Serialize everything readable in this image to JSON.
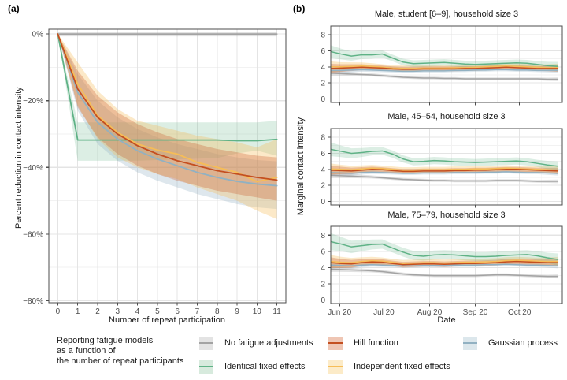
{
  "figure": {
    "panel_a_label": "(a)",
    "panel_b_label": "(b)"
  },
  "colors": {
    "no_fatigue": {
      "line": "#a3a3a3",
      "fill": "rgba(160,160,160,0.30)",
      "key_bg": "#e3e3e3"
    },
    "identical": {
      "line": "#5fb286",
      "fill": "rgba(95,178,134,0.22)",
      "key_bg": "#d7eadd"
    },
    "hill": {
      "line": "#c44f20",
      "fill": "rgba(196,79,32,0.28)",
      "key_bg": "#efc6b4"
    },
    "independent": {
      "line": "#f6bd57",
      "fill": "rgba(246,189,87,0.33)",
      "key_bg": "#fcebc8"
    },
    "gaussian": {
      "line": "#91b1c2",
      "fill": "rgba(145,177,194,0.30)",
      "key_bg": "#dce7ec"
    }
  },
  "legend": {
    "title_lines": [
      "Reporting fatigue models",
      "as a function of",
      "the number of repeat participants"
    ],
    "entries": [
      {
        "label": "No fatigue adjustments",
        "color": "no_fatigue"
      },
      {
        "label": "Identical fixed effects",
        "color": "identical"
      },
      {
        "label": "Hill function",
        "color": "hill"
      },
      {
        "label": "Independent fixed effects",
        "color": "independent"
      },
      {
        "label": "Gaussian process",
        "color": "gaussian"
      }
    ]
  },
  "panel_b": {
    "ylabel": "Marginal contact intensity",
    "xlabel": "Date"
  },
  "chart_data": [
    {
      "id": "panel-a",
      "type": "line",
      "xlabel": "Number of repeat participation",
      "ylabel": "Percent reduction in contact intensity",
      "xlim": [
        -0.45,
        11.45
      ],
      "ylim": [
        -80.6,
        1.45
      ],
      "xticks": [
        {
          "v": 0,
          "label": "0"
        },
        {
          "v": 1,
          "label": "1"
        },
        {
          "v": 2,
          "label": "2"
        },
        {
          "v": 3,
          "label": "3"
        },
        {
          "v": 4,
          "label": "4"
        },
        {
          "v": 5,
          "label": "5"
        },
        {
          "v": 6,
          "label": "6"
        },
        {
          "v": 7,
          "label": "7"
        },
        {
          "v": 8,
          "label": "8"
        },
        {
          "v": 9,
          "label": "9"
        },
        {
          "v": 10,
          "label": "10"
        },
        {
          "v": 11,
          "label": "11"
        }
      ],
      "yticks": [
        {
          "v": 0,
          "label": "0%"
        },
        {
          "v": -20,
          "label": "−20%"
        },
        {
          "v": -40,
          "label": "−40%"
        },
        {
          "v": -60,
          "label": "−60%"
        },
        {
          "v": -80,
          "label": "−80%"
        }
      ],
      "yminor": [
        -10,
        -30,
        -50,
        -70
      ],
      "xminor": [],
      "x": [
        0,
        1,
        2,
        3,
        4,
        5,
        6,
        7,
        8,
        9,
        10,
        11
      ],
      "series": [
        {
          "name": "No fatigue adjustments",
          "color": "no_fatigue",
          "values": [
            0,
            0,
            0,
            0,
            0,
            0,
            0,
            0,
            0,
            0,
            0,
            0
          ],
          "upper": [
            0.7,
            0.7,
            0.7,
            0.7,
            0.7,
            0.7,
            0.7,
            0.7,
            0.7,
            0.7,
            0.7,
            0.7
          ],
          "lower": [
            -0.7,
            -0.7,
            -0.7,
            -0.7,
            -0.7,
            -0.7,
            -0.7,
            -0.7,
            -0.7,
            -0.7,
            -0.7,
            -0.7
          ]
        },
        {
          "name": "Identical fixed effects",
          "color": "identical",
          "values": [
            0,
            -31.8,
            -31.8,
            -31.8,
            -31.8,
            -31.8,
            -31.8,
            -31.8,
            -31.8,
            -32,
            -32,
            -31.6
          ],
          "upper": [
            0,
            -26.5,
            -26.5,
            -26.5,
            -26.5,
            -26.5,
            -26.5,
            -26.5,
            -26.5,
            -26.5,
            -26.5,
            -26
          ],
          "lower": [
            0,
            -38,
            -38,
            -38,
            -38,
            -37.8,
            -37.6,
            -37.4,
            -37.2,
            -35.8,
            -35,
            -36.5
          ]
        },
        {
          "name": "Gaussian process",
          "color": "gaussian",
          "values": [
            0,
            -17.5,
            -26.5,
            -31.5,
            -35,
            -37.5,
            -39.5,
            -41.5,
            -43,
            -44.2,
            -45,
            -45.5
          ],
          "upper": [
            0,
            -12,
            -20,
            -25,
            -28.5,
            -31,
            -33,
            -34.5,
            -36,
            -37,
            -37.8,
            -38.2
          ],
          "lower": [
            0,
            -23,
            -33,
            -38,
            -41.5,
            -44,
            -46,
            -48,
            -49.5,
            -51,
            -52,
            -52.5
          ]
        },
        {
          "name": "Independent fixed effects",
          "color": "independent",
          "values": [
            0,
            -15,
            -24.5,
            -29.5,
            -33,
            -34.8,
            -36,
            -38.5,
            -40,
            -41.5,
            -44.3,
            -43
          ],
          "upper": [
            0,
            -8.5,
            -17,
            -22.5,
            -26,
            -27.5,
            -29,
            -30.5,
            -31.5,
            -32.5,
            -34,
            -31.5
          ],
          "lower": [
            0,
            -21.5,
            -31.5,
            -37,
            -40,
            -42,
            -43.5,
            -46,
            -48,
            -50,
            -53,
            -55.5
          ]
        },
        {
          "name": "Hill function",
          "color": "hill",
          "values": [
            0,
            -16.5,
            -25,
            -30,
            -33.5,
            -36,
            -38,
            -39.5,
            -41,
            -42,
            -43,
            -43.8
          ],
          "upper": [
            0,
            -11,
            -18.5,
            -23.5,
            -27,
            -29.5,
            -31.5,
            -33,
            -34.5,
            -35.5,
            -36.5,
            -37
          ],
          "lower": [
            0,
            -22,
            -31,
            -36,
            -39.5,
            -42,
            -44,
            -45.5,
            -47,
            -48,
            -49,
            -50
          ]
        }
      ]
    },
    {
      "id": "panel-b-1",
      "type": "line",
      "title": "Male, student [6–9], household size 3",
      "xlim": [
        0,
        157
      ],
      "ylim": [
        -0.45,
        9.1
      ],
      "xticks": [
        {
          "v": 6,
          "label": "Jun 20"
        },
        {
          "v": 36,
          "label": "Jul 20"
        },
        {
          "v": 67,
          "label": "Aug 20"
        },
        {
          "v": 98,
          "label": "Sep 20"
        },
        {
          "v": 128,
          "label": "Oct 20"
        }
      ],
      "yticks": [
        {
          "v": 0,
          "label": "0"
        },
        {
          "v": 2,
          "label": "2"
        },
        {
          "v": 4,
          "label": "4"
        },
        {
          "v": 6,
          "label": "6"
        },
        {
          "v": 8,
          "label": "8"
        }
      ],
      "xminor": [
        21,
        51,
        82,
        113,
        143
      ],
      "yminor": [
        1,
        3,
        5,
        7
      ],
      "x": [
        0,
        7,
        14,
        21,
        28,
        35,
        42,
        49,
        56,
        63,
        70,
        77,
        84,
        91,
        98,
        105,
        112,
        119,
        126,
        133,
        140,
        147,
        154
      ],
      "series": [
        {
          "name": "No fatigue adjustments",
          "color": "no_fatigue",
          "band": 0.17,
          "values": [
            3.2,
            3.15,
            3.1,
            3.05,
            3.0,
            2.9,
            2.8,
            2.7,
            2.65,
            2.6,
            2.6,
            2.55,
            2.55,
            2.5,
            2.5,
            2.5,
            2.5,
            2.5,
            2.5,
            2.5,
            2.5,
            2.45,
            2.45
          ]
        },
        {
          "name": "Gaussian process",
          "color": "gaussian",
          "band": 0.2,
          "values": [
            3.55,
            3.55,
            3.6,
            3.65,
            3.6,
            3.55,
            3.5,
            3.45,
            3.45,
            3.5,
            3.5,
            3.5,
            3.55,
            3.55,
            3.6,
            3.6,
            3.65,
            3.65,
            3.6,
            3.6,
            3.55,
            3.55,
            3.55
          ]
        },
        {
          "name": "Independent fixed effects",
          "color": "independent",
          "band": 0.36,
          "values": [
            4.0,
            4.0,
            4.05,
            4.1,
            4.05,
            3.95,
            3.85,
            3.8,
            3.8,
            3.85,
            3.85,
            3.85,
            3.9,
            3.9,
            3.95,
            4.0,
            4.05,
            4.1,
            4.05,
            4.0,
            3.95,
            3.9,
            3.9
          ]
        },
        {
          "name": "Hill function",
          "color": "hill",
          "band": 0.3,
          "values": [
            3.8,
            3.85,
            3.9,
            3.95,
            3.9,
            3.85,
            3.75,
            3.7,
            3.7,
            3.75,
            3.75,
            3.75,
            3.75,
            3.8,
            3.8,
            3.85,
            3.9,
            3.95,
            3.9,
            3.85,
            3.8,
            3.8,
            3.8
          ]
        },
        {
          "name": "Identical fixed effects",
          "color": "identical",
          "band": 0.42,
          "values": [
            5.9,
            5.6,
            5.35,
            5.5,
            5.5,
            5.6,
            5.1,
            4.6,
            4.4,
            4.45,
            4.5,
            4.55,
            4.45,
            4.35,
            4.3,
            4.35,
            4.4,
            4.45,
            4.5,
            4.45,
            4.3,
            4.15,
            4.05
          ]
        }
      ]
    },
    {
      "id": "panel-b-2",
      "type": "line",
      "title": "Male, 45–54, household size 3",
      "xlim": [
        0,
        157
      ],
      "ylim": [
        -0.45,
        9.1
      ],
      "xticks": [
        {
          "v": 6,
          "label": "Jun 20"
        },
        {
          "v": 36,
          "label": "Jul 20"
        },
        {
          "v": 67,
          "label": "Aug 20"
        },
        {
          "v": 98,
          "label": "Sep 20"
        },
        {
          "v": 128,
          "label": "Oct 20"
        }
      ],
      "yticks": [
        {
          "v": 0,
          "label": "0"
        },
        {
          "v": 2,
          "label": "2"
        },
        {
          "v": 4,
          "label": "4"
        },
        {
          "v": 6,
          "label": "6"
        },
        {
          "v": 8,
          "label": "8"
        }
      ],
      "xminor": [
        21,
        51,
        82,
        113,
        143
      ],
      "yminor": [
        1,
        3,
        5,
        7
      ],
      "x": [
        0,
        7,
        14,
        21,
        28,
        35,
        42,
        49,
        56,
        63,
        70,
        77,
        84,
        91,
        98,
        105,
        112,
        119,
        126,
        133,
        140,
        147,
        154
      ],
      "series": [
        {
          "name": "No fatigue adjustments",
          "color": "no_fatigue",
          "band": 0.17,
          "values": [
            3.25,
            3.2,
            3.15,
            3.1,
            3.05,
            2.95,
            2.85,
            2.75,
            2.7,
            2.65,
            2.6,
            2.6,
            2.55,
            2.55,
            2.55,
            2.55,
            2.6,
            2.6,
            2.6,
            2.55,
            2.5,
            2.5,
            2.5
          ]
        },
        {
          "name": "Gaussian process",
          "color": "gaussian",
          "band": 0.2,
          "values": [
            3.6,
            3.55,
            3.5,
            3.6,
            3.65,
            3.6,
            3.55,
            3.5,
            3.5,
            3.55,
            3.55,
            3.55,
            3.6,
            3.6,
            3.6,
            3.65,
            3.65,
            3.7,
            3.65,
            3.6,
            3.6,
            3.55,
            3.5
          ]
        },
        {
          "name": "Independent fixed effects",
          "color": "independent",
          "band": 0.36,
          "values": [
            4.05,
            4.0,
            3.95,
            4.05,
            4.15,
            4.1,
            4.0,
            3.9,
            3.9,
            3.95,
            3.95,
            3.95,
            4.0,
            4.0,
            4.05,
            4.05,
            4.1,
            4.15,
            4.1,
            4.05,
            4.0,
            3.95,
            3.9
          ]
        },
        {
          "name": "Hill function",
          "color": "hill",
          "band": 0.3,
          "values": [
            3.9,
            3.85,
            3.8,
            3.9,
            4.0,
            3.95,
            3.85,
            3.75,
            3.75,
            3.8,
            3.8,
            3.8,
            3.85,
            3.85,
            3.9,
            3.9,
            3.95,
            4.0,
            4.0,
            3.95,
            3.9,
            3.85,
            3.8
          ]
        },
        {
          "name": "Identical fixed effects",
          "color": "identical",
          "band": 0.45,
          "values": [
            6.5,
            6.25,
            6.0,
            6.1,
            6.25,
            6.3,
            5.9,
            5.3,
            4.95,
            5.0,
            5.1,
            5.05,
            4.95,
            4.9,
            4.85,
            4.9,
            4.95,
            5.0,
            5.05,
            4.95,
            4.75,
            4.55,
            4.4
          ]
        }
      ]
    },
    {
      "id": "panel-b-3",
      "type": "line",
      "title": "Male, 75–79, household size 3",
      "xlim": [
        0,
        157
      ],
      "ylim": [
        -0.45,
        9.1
      ],
      "xticks": [
        {
          "v": 6,
          "label": "Jun 20"
        },
        {
          "v": 36,
          "label": "Jul 20"
        },
        {
          "v": 67,
          "label": "Aug 20"
        },
        {
          "v": 98,
          "label": "Sep 20"
        },
        {
          "v": 128,
          "label": "Oct 20"
        }
      ],
      "yticks": [
        {
          "v": 0,
          "label": "0"
        },
        {
          "v": 2,
          "label": "2"
        },
        {
          "v": 4,
          "label": "4"
        },
        {
          "v": 6,
          "label": "6"
        },
        {
          "v": 8,
          "label": "8"
        }
      ],
      "xminor": [
        21,
        51,
        82,
        113,
        143
      ],
      "yminor": [
        1,
        3,
        5,
        7
      ],
      "x": [
        0,
        7,
        14,
        21,
        28,
        35,
        42,
        49,
        56,
        63,
        70,
        77,
        84,
        91,
        98,
        105,
        112,
        119,
        126,
        133,
        140,
        147,
        154
      ],
      "series": [
        {
          "name": "No fatigue adjustments",
          "color": "no_fatigue",
          "band": 0.18,
          "values": [
            3.8,
            3.75,
            3.7,
            3.65,
            3.6,
            3.5,
            3.35,
            3.2,
            3.1,
            3.05,
            3.0,
            3.0,
            3.0,
            3.0,
            3.0,
            3.05,
            3.1,
            3.1,
            3.05,
            3.0,
            2.95,
            2.9,
            2.9
          ]
        },
        {
          "name": "Gaussian process",
          "color": "gaussian",
          "band": 0.22,
          "values": [
            4.3,
            4.25,
            4.2,
            4.3,
            4.35,
            4.3,
            4.25,
            4.2,
            4.2,
            4.25,
            4.25,
            4.25,
            4.3,
            4.3,
            4.3,
            4.35,
            4.35,
            4.4,
            4.35,
            4.3,
            4.3,
            4.25,
            4.2
          ]
        },
        {
          "name": "Independent fixed effects",
          "color": "independent",
          "band": 0.42,
          "values": [
            4.75,
            4.65,
            4.6,
            4.75,
            4.85,
            4.8,
            4.65,
            4.5,
            4.55,
            4.6,
            4.6,
            4.55,
            4.6,
            4.65,
            4.65,
            4.7,
            4.75,
            4.85,
            4.9,
            4.85,
            4.8,
            4.75,
            4.75
          ]
        },
        {
          "name": "Hill function",
          "color": "hill",
          "band": 0.35,
          "values": [
            4.6,
            4.5,
            4.45,
            4.6,
            4.7,
            4.65,
            4.5,
            4.35,
            4.4,
            4.45,
            4.45,
            4.4,
            4.45,
            4.5,
            4.5,
            4.55,
            4.6,
            4.7,
            4.75,
            4.7,
            4.65,
            4.6,
            4.6
          ]
        },
        {
          "name": "Identical fixed effects",
          "color": "identical",
          "band": 0.55,
          "values": [
            7.2,
            6.9,
            6.55,
            6.7,
            6.85,
            6.9,
            6.4,
            5.9,
            5.5,
            5.4,
            5.55,
            5.6,
            5.55,
            5.45,
            5.35,
            5.35,
            5.4,
            5.5,
            5.55,
            5.6,
            5.45,
            5.2,
            5.0
          ]
        }
      ]
    }
  ]
}
